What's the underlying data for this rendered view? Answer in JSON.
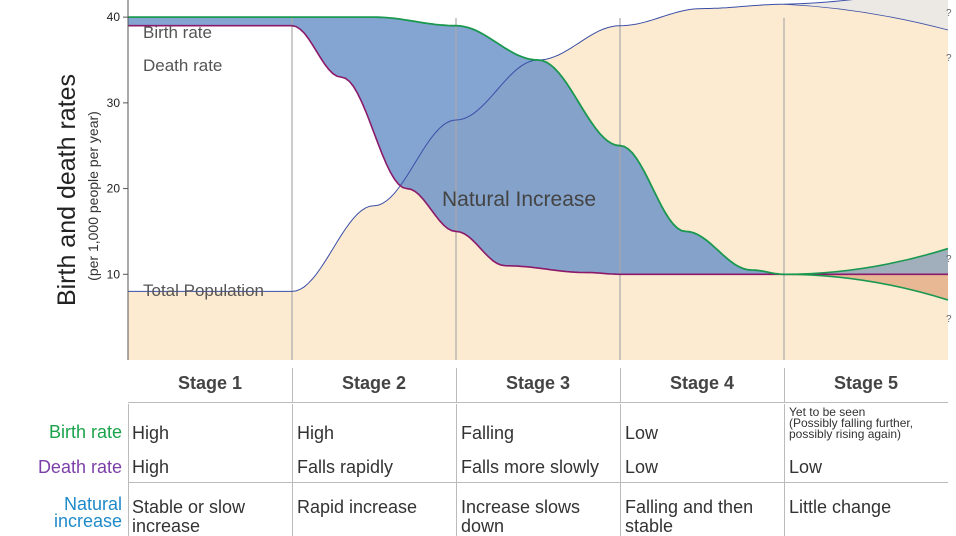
{
  "chart_data": {
    "type": "line",
    "ylabel": "Birth and death rates",
    "ylabel_sub": "(per 1,000 people per year)",
    "yticks": [
      10,
      20,
      30,
      40
    ],
    "ylim": [
      0,
      42
    ],
    "x_stage_boundaries": [
      1,
      2,
      3,
      4
    ],
    "xlim": [
      0,
      5
    ],
    "series": [
      {
        "name": "Birth rate",
        "color": "#1a9850",
        "x": [
          0,
          1,
          1.5,
          2,
          2.5,
          3,
          3.4,
          3.8,
          4
        ],
        "y": [
          40,
          40,
          40,
          39,
          35,
          25,
          15,
          10.5,
          10
        ]
      },
      {
        "name": "Death rate",
        "color": "#8b1a6b",
        "x": [
          0,
          1,
          1.3,
          1.7,
          2,
          2.3,
          2.8,
          3,
          4
        ],
        "y": [
          39,
          39,
          33,
          20,
          15,
          11,
          10.2,
          10,
          10
        ]
      },
      {
        "name": "Total Population",
        "color": "#3b4fa8",
        "x": [
          0,
          1,
          1.5,
          2,
          2.5,
          3,
          3.5,
          4
        ],
        "y": [
          8,
          8,
          18,
          28,
          35,
          39,
          41,
          41.5
        ]
      }
    ],
    "stage5_projections": {
      "birth_low": 7,
      "birth_high": 13,
      "death": 10,
      "pop_high": 44,
      "pop_low": 38.5
    },
    "annotations": [
      {
        "text": "Birth rate"
      },
      {
        "text": "Death rate"
      },
      {
        "text": "Total Population"
      },
      {
        "text": "Natural Increase"
      },
      {
        "text": "?"
      },
      {
        "text": "?"
      },
      {
        "text": "?"
      },
      {
        "text": "?"
      }
    ],
    "colors": {
      "natural_increase": "#6f95c9",
      "population_fill": "#fcebd0",
      "pop_proj_fill": "#ece8e4",
      "decrease_fill": "#e8b894"
    }
  },
  "stages": [
    "Stage 1",
    "Stage 2",
    "Stage 3",
    "Stage 4",
    "Stage 5"
  ],
  "table": {
    "birth_rate": {
      "label": "Birth rate",
      "color": "#1aa34a",
      "cells": [
        "High",
        "High",
        "Falling",
        "Low",
        ""
      ],
      "stage5_lines": [
        "Yet to be seen",
        "(Possibly falling further,",
        "possibly rising again)"
      ]
    },
    "death_rate": {
      "label": "Death rate",
      "color": "#7b3fa8",
      "cells": [
        "High",
        "Falls rapidly",
        "Falls more slowly",
        "Low",
        "Low"
      ]
    },
    "natural_increase": {
      "label_lines": [
        "Natural",
        "increase"
      ],
      "color": "#1f8ac9",
      "cells": [
        [
          "Stable or slow",
          "increase"
        ],
        [
          "Rapid increase"
        ],
        [
          "Increase slows",
          "down"
        ],
        [
          "Falling and then",
          "stable"
        ],
        [
          "Little change"
        ]
      ]
    }
  }
}
